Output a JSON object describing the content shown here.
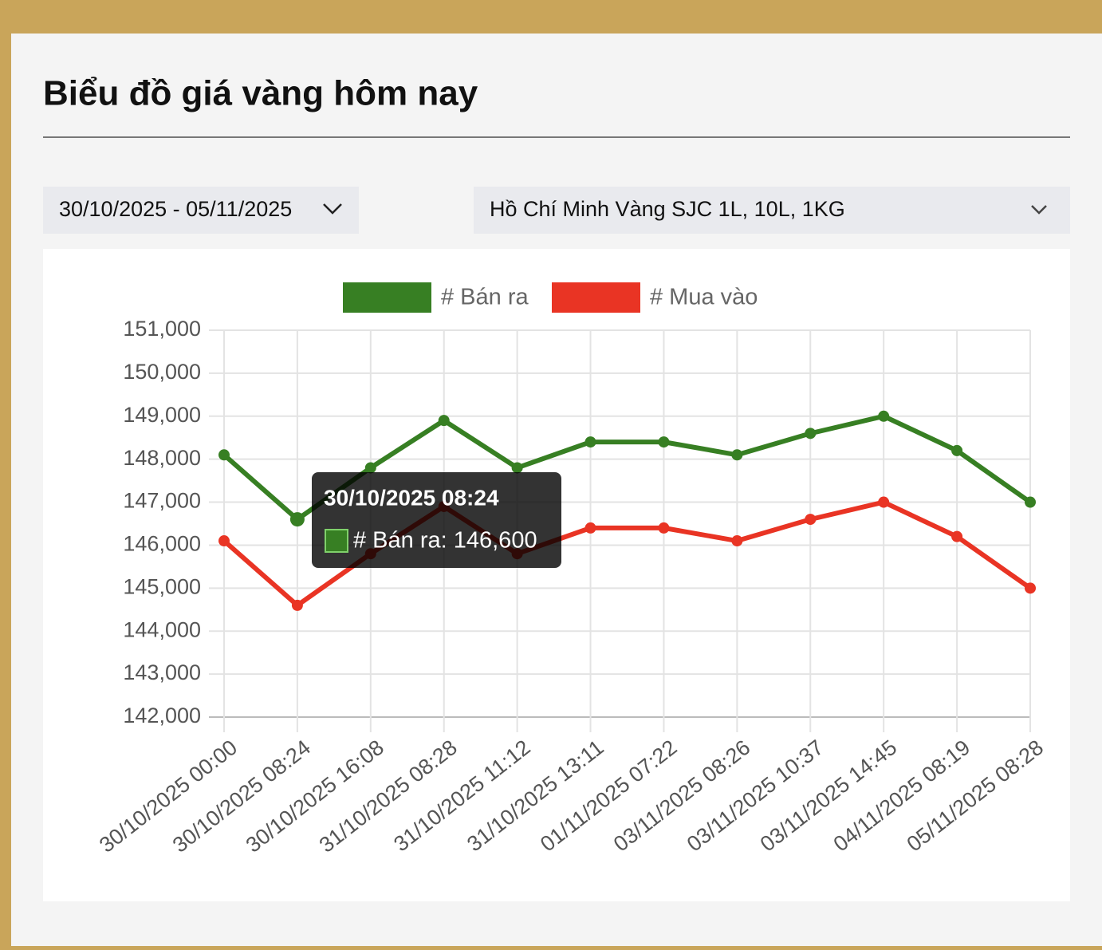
{
  "header": {
    "title": "Biểu đồ giá vàng hôm nay"
  },
  "filters": {
    "date_range": "30/10/2025 - 05/11/2025",
    "product": "Hồ Chí Minh Vàng SJC 1L, 10L, 1KG"
  },
  "chart_data": {
    "type": "line",
    "categories": [
      "30/10/2025 00:00",
      "30/10/2025 08:24",
      "30/10/2025 16:08",
      "31/10/2025 08:28",
      "31/10/2025 11:12",
      "31/10/2025 13:11",
      "01/11/2025 07:22",
      "03/11/2025 08:26",
      "03/11/2025 10:37",
      "03/11/2025 14:45",
      "04/11/2025 08:19",
      "05/11/2025 08:28"
    ],
    "series": [
      {
        "name": "# Bán ra",
        "color": "#377f23",
        "values": [
          148100,
          146600,
          147800,
          148900,
          147800,
          148400,
          148400,
          148100,
          148600,
          149000,
          148200,
          147000
        ]
      },
      {
        "name": "# Mua vào",
        "color": "#e93424",
        "values": [
          146100,
          144600,
          145800,
          146900,
          145800,
          146400,
          146400,
          146100,
          146600,
          147000,
          146200,
          145000
        ]
      }
    ],
    "ylim": [
      142000,
      151000
    ],
    "yticks": [
      {
        "value": 142000,
        "label": "142,000"
      },
      {
        "value": 143000,
        "label": "143,000"
      },
      {
        "value": 144000,
        "label": "144,000"
      },
      {
        "value": 145000,
        "label": "145,000"
      },
      {
        "value": 146000,
        "label": "146,000"
      },
      {
        "value": 147000,
        "label": "147,000"
      },
      {
        "value": 148000,
        "label": "148,000"
      },
      {
        "value": 149000,
        "label": "149,000"
      },
      {
        "value": 150000,
        "label": "150,000"
      },
      {
        "value": 151000,
        "label": "151,000"
      }
    ],
    "grid": true,
    "legend": "top",
    "tooltip": {
      "title": "30/10/2025 08:24",
      "label": "# Bán ra: 146,600"
    }
  }
}
